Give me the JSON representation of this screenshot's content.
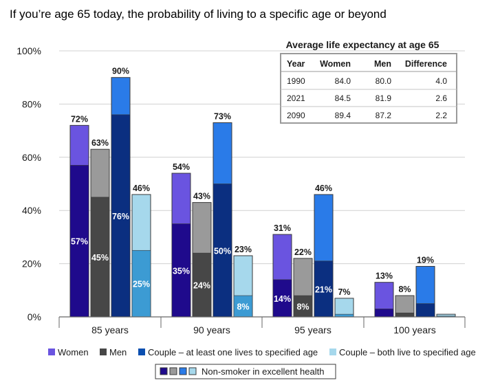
{
  "chart_data": {
    "type": "bar",
    "title": "If you’re age 65 today, the probability of living to a specific age or beyond",
    "ylim": [
      0,
      100
    ],
    "yticks": [
      0,
      20,
      40,
      60,
      80,
      100
    ],
    "ytick_labels": [
      "0%",
      "20%",
      "40%",
      "60%",
      "80%",
      "100%"
    ],
    "categories": [
      "85 years",
      "90 years",
      "95 years",
      "100 years"
    ],
    "series": [
      {
        "name": "Women",
        "color": "#6a54e0",
        "inner_color": "#1f0a8c",
        "values": [
          72,
          54,
          31,
          13
        ],
        "nonsmoker": [
          57,
          35,
          14,
          3
        ],
        "labels": [
          "72%",
          "54%",
          "31%",
          "13%"
        ],
        "inner_labels": [
          "57%",
          "35%",
          "14%",
          ""
        ]
      },
      {
        "name": "Men",
        "color": "#9a9a9a",
        "inner_color": "#474747",
        "values": [
          63,
          43,
          22,
          8
        ],
        "nonsmoker": [
          45,
          24,
          8,
          1.5
        ],
        "labels": [
          "63%",
          "43%",
          "22%",
          "8%"
        ],
        "inner_labels": [
          "45%",
          "24%",
          "8%",
          ""
        ]
      },
      {
        "name": "Couple – at least one lives to specified age",
        "color": "#2a7be8",
        "inner_color": "#0b2f80",
        "values": [
          90,
          73,
          46,
          19
        ],
        "nonsmoker": [
          76,
          50,
          21,
          5
        ],
        "labels": [
          "90%",
          "73%",
          "46%",
          "19%"
        ],
        "inner_labels": [
          "76%",
          "50%",
          "21%",
          ""
        ]
      },
      {
        "name": "Couple – both live to specified age",
        "color": "#a6d8ec",
        "inner_color": "#3c9bd3",
        "values": [
          46,
          23,
          7,
          1
        ],
        "nonsmoker": [
          25,
          8,
          1,
          0.3
        ],
        "labels": [
          "46%",
          "23%",
          "7%",
          ""
        ],
        "inner_labels": [
          "25%",
          "8%",
          "",
          ""
        ]
      }
    ],
    "nonsmoker_legend": "Non-smoker in excellent health",
    "bar_stroke": "#3a3a3a"
  },
  "table": {
    "title": "Average life expectancy at age 65",
    "headers": [
      "Year",
      "Women",
      "Men",
      "Difference"
    ],
    "rows": [
      [
        "1990",
        "84.0",
        "80.0",
        "4.0"
      ],
      [
        "2021",
        "84.5",
        "81.9",
        "2.6"
      ],
      [
        "2090",
        "89.4",
        "87.2",
        "2.2"
      ]
    ]
  }
}
